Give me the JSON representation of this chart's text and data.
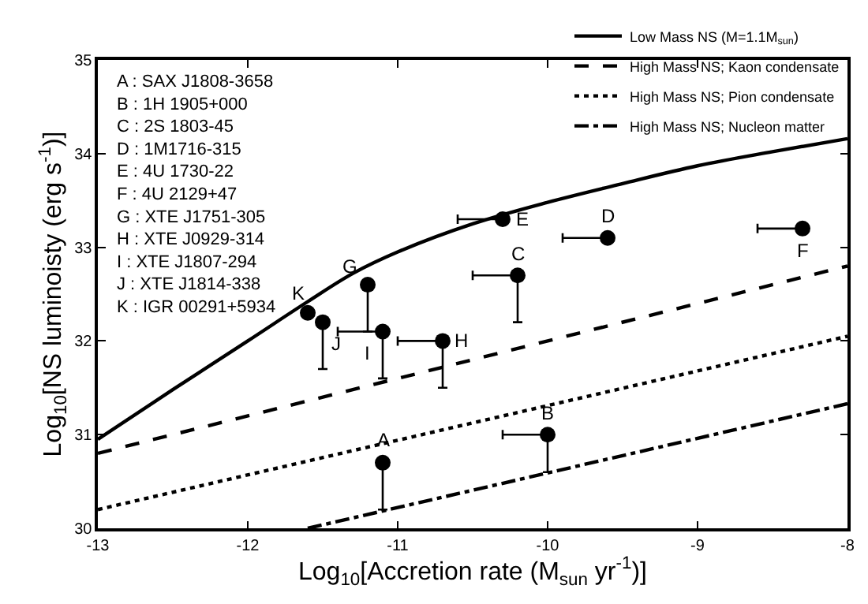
{
  "chart_data": {
    "type": "line",
    "xlabel": "Log$_{10}$[Accretion rate (M$_{sun}$ yr$^{-1}$)]",
    "ylabel": "Log$_{10}$[NS luminoisty (erg s$^{-1}$)]",
    "xlim": [
      -13,
      -8
    ],
    "xticks": [
      -13,
      -12,
      -11,
      -10,
      -9,
      -8
    ],
    "ylim": [
      30,
      35
    ],
    "yticks": [
      30,
      31,
      32,
      33,
      34,
      35
    ],
    "legend": "top right",
    "series": [
      {
        "name": "Low Mass NS (M=1.1M$_{sun}$)",
        "color": "#000000",
        "line_style": "solid",
        "marker": "none",
        "x": [
          -13,
          -12.5,
          -12,
          -11.6,
          -11.3,
          -11,
          -10.5,
          -10,
          -9.5,
          -9,
          -8.5,
          -8
        ],
        "values": [
          30.95,
          31.48,
          32.0,
          32.42,
          32.72,
          32.95,
          33.25,
          33.48,
          33.68,
          33.87,
          34.02,
          34.16
        ]
      },
      {
        "name": "High Mass NS; Kaon condensate",
        "color": "#000000",
        "line_style": "dashed",
        "marker": "none",
        "x": [
          -13,
          -8
        ],
        "values": [
          30.8,
          32.8
        ]
      },
      {
        "name": "High Mass NS; Pion condensate",
        "color": "#000000",
        "line_style": "dotted",
        "marker": "none",
        "x": [
          -13,
          -8
        ],
        "values": [
          30.2,
          32.05
        ]
      },
      {
        "name": "High Mass NS; Nucleon matter",
        "color": "#000000",
        "line_style": "dashdot",
        "marker": "none",
        "x": [
          -11.6,
          -8
        ],
        "values": [
          30.0,
          31.33
        ]
      },
      {
        "type": "scatter",
        "color": "#000000",
        "marker": "circle",
        "x": [
          -11.1,
          -10.0,
          -10.2,
          -9.6,
          -10.3,
          -8.3,
          -11.2,
          -10.7,
          -11.1,
          -11.5,
          -11.6
        ],
        "values": [
          30.7,
          31.0,
          32.7,
          33.1,
          33.3,
          33.2,
          32.6,
          32.0,
          32.1,
          32.2,
          32.3
        ],
        "errors": [
          [
            30.2,
            30.7
          ],
          [
            30.6,
            31.0
          ],
          [
            32.2,
            32.7
          ],
          null,
          null,
          null,
          [
            32.1,
            32.6
          ],
          [
            31.5,
            32.0
          ],
          [
            31.6,
            32.1
          ],
          [
            31.7,
            32.2
          ],
          null
        ],
        "xerrors": [
          null,
          [
            -10.3,
            -10.0
          ],
          [
            -10.5,
            -10.2
          ],
          [
            -9.9,
            -9.6
          ],
          [
            -10.6,
            -10.3
          ],
          [
            -8.6,
            -8.3
          ],
          null,
          [
            -11.0,
            -10.7
          ],
          [
            -11.4,
            -11.1
          ],
          null,
          null
        ]
      }
    ],
    "annotations": [
      "A : SAX J1808-3658",
      "B : 1H 1905+000",
      "C : 2S 1803-45",
      "D : 1M1716-315",
      "E : 4U 1730-22",
      "F : 4U 2129+47",
      "G : XTE J1751-305",
      "H : XTE J0929-314",
      "I : XTE J1807-294",
      "J : XTE J1814-338",
      "K : IGR 00291+5934",
      {
        "text": "A",
        "x": -11.1,
        "y": 30.7
      },
      {
        "text": "B",
        "x": -10.0,
        "y": 31.0
      },
      {
        "text": "C",
        "x": -10.2,
        "y": 32.7
      },
      {
        "text": "D",
        "x": -9.6,
        "y": 33.1
      },
      {
        "text": "E",
        "x": -10.3,
        "y": 33.3
      },
      {
        "text": "F",
        "x": -8.3,
        "y": 33.2
      },
      {
        "text": "G",
        "x": -11.2,
        "y": 32.6
      },
      {
        "text": "H",
        "x": -10.7,
        "y": 32.0
      },
      {
        "text": "I",
        "x": -11.1,
        "y": 32.1
      },
      {
        "text": "J",
        "x": -11.5,
        "y": 32.2
      },
      {
        "text": "K",
        "x": -11.6,
        "y": 32.3
      }
    ]
  }
}
